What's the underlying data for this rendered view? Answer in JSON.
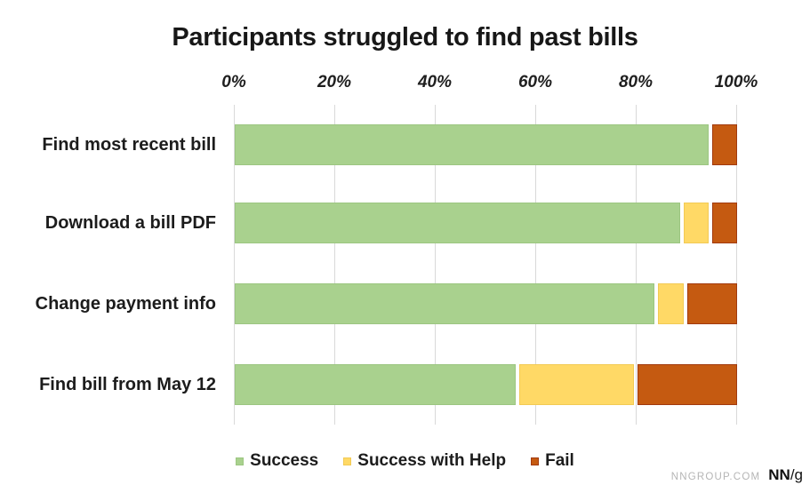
{
  "title": "Participants struggled to find past bills",
  "footer": {
    "site": "NNGROUP.COM",
    "logo_nn": "NN",
    "logo_slash_g": "/g"
  },
  "colors": {
    "success_fill": "#a9d18e",
    "success_border": "#9cc681",
    "help_fill": "#ffd966",
    "help_border": "#f2ca55",
    "fail_fill": "#c55a11",
    "fail_border": "#a23a0e",
    "gridline": "#d9d9d9",
    "text": "#1a1a1a"
  },
  "chart_data": {
    "type": "bar",
    "orientation": "horizontal",
    "stacked": true,
    "title": "Participants struggled to find past bills",
    "categories": [
      "Find most recent bill",
      "Download a bill PDF",
      "Change payment info",
      "Find bill from May 12"
    ],
    "series": [
      {
        "name": "Success",
        "color": "#a9d18e",
        "border": "#9cc681",
        "values": [
          95,
          90,
          85,
          57
        ]
      },
      {
        "name": "Success with Help",
        "color": "#ffd966",
        "border": "#f2ca55",
        "values": [
          0,
          5,
          5,
          23
        ]
      },
      {
        "name": "Fail",
        "color": "#c55a11",
        "border": "#a23a0e",
        "values": [
          5,
          5,
          10,
          20
        ]
      }
    ],
    "x_ticks": [
      "0%",
      "20%",
      "40%",
      "60%",
      "80%",
      "100%"
    ],
    "xlim": [
      0,
      100
    ],
    "xlabel": "",
    "ylabel": "",
    "grid": "vertical-only",
    "legend_position": "bottom"
  },
  "layout_note_values_are_percent": true
}
